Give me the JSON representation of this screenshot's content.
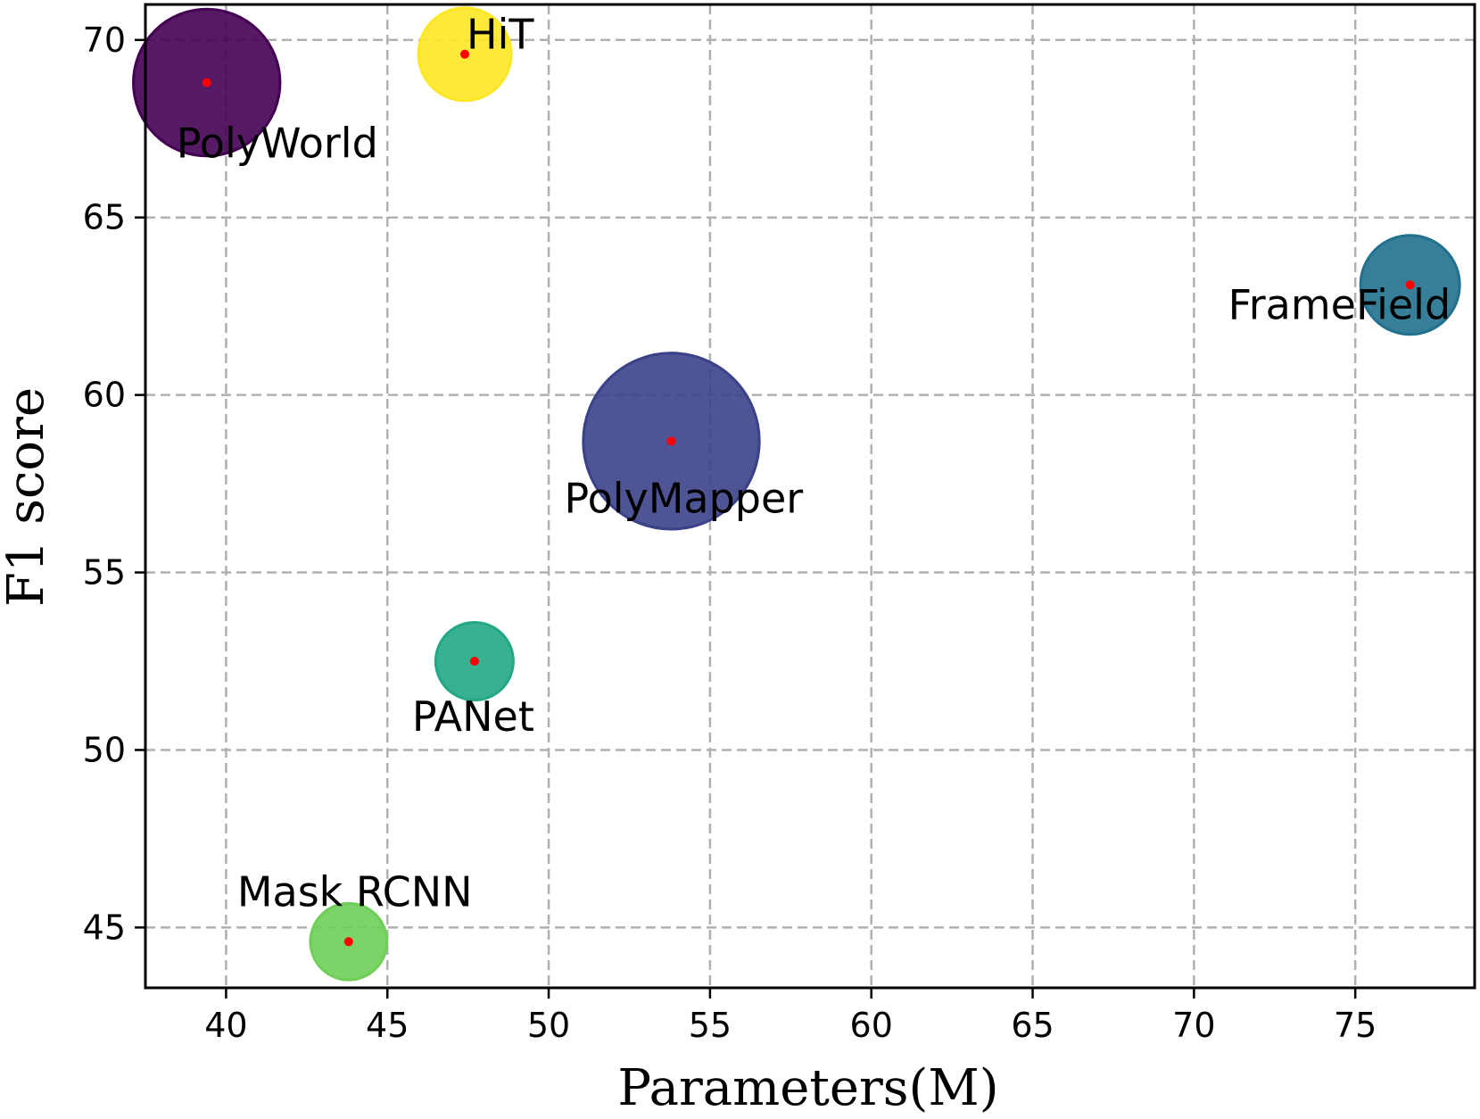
{
  "chart_data": {
    "type": "scatter",
    "subtype": "bubble",
    "title": "",
    "xlabel": "Parameters(M)",
    "ylabel": "F1 score",
    "xlim": [
      37.5,
      78.7
    ],
    "ylim": [
      43.3,
      71.0
    ],
    "xticks": [
      40,
      45,
      50,
      55,
      60,
      65,
      70,
      75
    ],
    "yticks": [
      45,
      50,
      55,
      60,
      65,
      70
    ],
    "grid": true,
    "legend": "none",
    "points": [
      {
        "name": "PolyWorld",
        "x": 39.4,
        "y": 68.8,
        "size": 2.5,
        "color": "#440154"
      },
      {
        "name": "HiT",
        "x": 47.4,
        "y": 69.6,
        "size": 1.0,
        "color": "#fde725"
      },
      {
        "name": "FrameField",
        "x": 76.7,
        "y": 63.1,
        "size": 1.14,
        "color": "#21708d"
      },
      {
        "name": "PolyMapper",
        "x": 53.8,
        "y": 58.7,
        "size": 3.6,
        "color": "#3b4188"
      },
      {
        "name": "PANet",
        "x": 47.7,
        "y": 52.5,
        "size": 0.7,
        "color": "#22a884"
      },
      {
        "name": "Mask RCNN",
        "x": 43.8,
        "y": 44.6,
        "size": 0.68,
        "color": "#6ece58"
      }
    ],
    "center_marker_color": "#ff0000"
  }
}
